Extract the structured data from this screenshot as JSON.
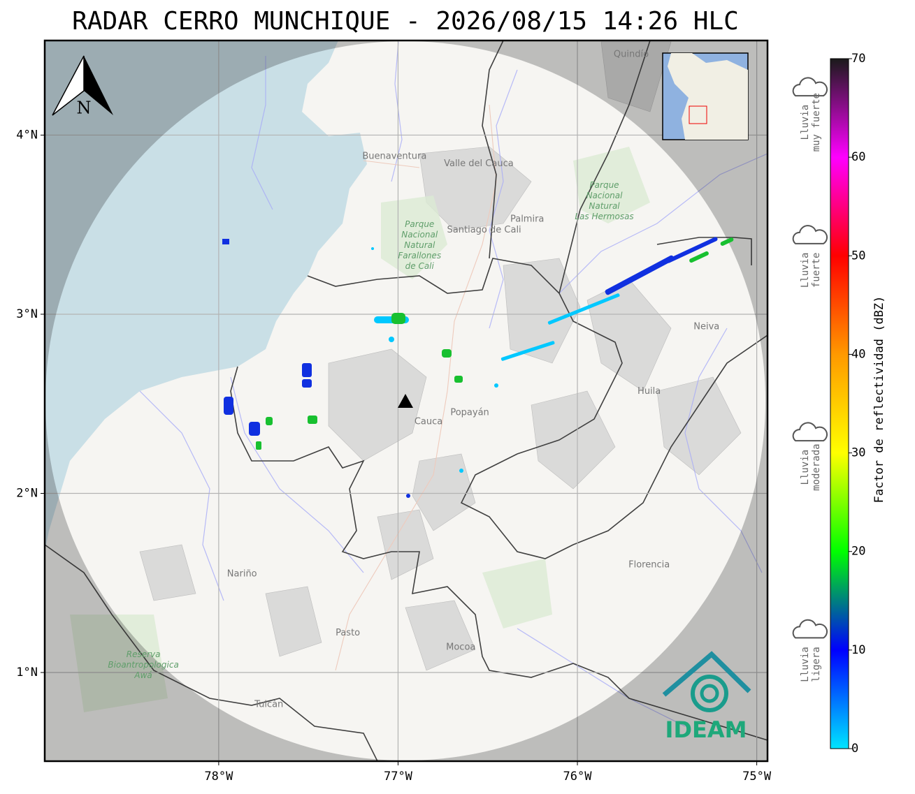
{
  "title": "RADAR CERRO MUNCHIQUE - 2026/08/15 14:26 HLC",
  "map": {
    "xlim": [
      -78.97,
      -74.94
    ],
    "ylim": [
      0.505,
      4.528
    ],
    "xticks": [
      {
        "value": -78,
        "label": "78°W"
      },
      {
        "value": -77,
        "label": "77°W"
      },
      {
        "value": -76,
        "label": "76°W"
      },
      {
        "value": -75,
        "label": "75°W"
      }
    ],
    "yticks": [
      {
        "value": 1,
        "label": "1°N"
      },
      {
        "value": 2,
        "label": "2°N"
      },
      {
        "value": 3,
        "label": "3°N"
      },
      {
        "value": 4,
        "label": "4°N"
      }
    ],
    "north": "N",
    "places": [
      {
        "name": "Buenaventura",
        "lon": -77.02,
        "lat": 3.88
      },
      {
        "name": "Valle del Cauca",
        "lon": -76.55,
        "lat": 3.84
      },
      {
        "name": "Santiago de Cali",
        "lon": -76.52,
        "lat": 3.47
      },
      {
        "name": "Palmira",
        "lon": -76.28,
        "lat": 3.53
      },
      {
        "name": "Neiva",
        "lon": -75.28,
        "lat": 2.93
      },
      {
        "name": "Huila",
        "lon": -75.6,
        "lat": 2.57
      },
      {
        "name": "Cauca",
        "lon": -76.83,
        "lat": 2.4
      },
      {
        "name": "Popayán",
        "lon": -76.6,
        "lat": 2.45
      },
      {
        "name": "Nariño",
        "lon": -77.87,
        "lat": 1.55
      },
      {
        "name": "Pasto",
        "lon": -77.28,
        "lat": 1.22
      },
      {
        "name": "Mocoa",
        "lon": -76.65,
        "lat": 1.14
      },
      {
        "name": "Florencia",
        "lon": -75.6,
        "lat": 1.6
      },
      {
        "name": "Tulcán",
        "lon": -77.72,
        "lat": 0.82
      },
      {
        "name": "Quindío",
        "lon": -75.7,
        "lat": 4.45
      }
    ],
    "parks": [
      {
        "lines": [
          "Parque",
          "Nacional",
          "Natural",
          "Farallones",
          "de Cali"
        ],
        "lon": -76.88,
        "lat": 3.5
      },
      {
        "lines": [
          "Parque",
          "Nacional",
          "Natural",
          "Las Hermosas"
        ],
        "lon": -75.85,
        "lat": 3.72
      },
      {
        "lines": [
          "Reserva",
          "Bioantropologica",
          "Awá"
        ],
        "lon": -78.42,
        "lat": 1.1
      }
    ]
  },
  "colorbar": {
    "label": "Factor de reflectividad (dBZ)",
    "lim": [
      0,
      70
    ],
    "ticks": [
      0,
      10,
      20,
      30,
      40,
      50,
      60,
      70
    ],
    "colors": [
      "#00e5ff",
      "#0000ff",
      "#00ff00",
      "#ffff00",
      "#ff9900",
      "#ff0000",
      "#ff00ff",
      "#1a1a1a"
    ]
  },
  "legend": [
    {
      "lines": [
        "Lluvia",
        "muy fuerte"
      ],
      "dbz": 60
    },
    {
      "lines": [
        "Lluvia",
        "fuerte"
      ],
      "dbz": 45
    },
    {
      "lines": [
        "Lluvia",
        "moderada"
      ],
      "dbz": 25
    },
    {
      "lines": [
        "Lluvia",
        "ligera"
      ],
      "dbz": 5
    }
  ],
  "logo": "IDEAM"
}
